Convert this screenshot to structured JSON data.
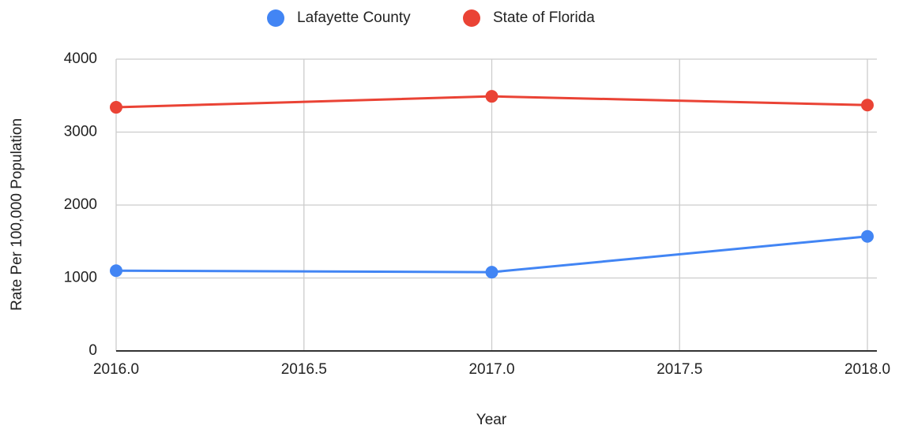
{
  "chart_data": {
    "type": "line",
    "x": [
      2016,
      2017,
      2018
    ],
    "series": [
      {
        "name": "Lafayette County",
        "color": "#4285f4",
        "values": [
          1100,
          1080,
          1570
        ]
      },
      {
        "name": "State of Florida",
        "color": "#ea4335",
        "values": [
          3340,
          3490,
          3370
        ]
      }
    ],
    "xlabel": "Year",
    "ylabel": "Rate Per 100,000 Population",
    "xlim": [
      2016,
      2018
    ],
    "xticks": [
      {
        "value": 2016,
        "label": "2016.0"
      },
      2016.5,
      {
        "value": 2017,
        "label": "2017.0"
      },
      2017.5,
      {
        "value": 2018,
        "label": "2018.0"
      }
    ],
    "ylim": [
      0,
      4000
    ],
    "yticks": [
      0,
      1000,
      2000,
      3000,
      4000
    ],
    "grid": true,
    "legend": "top"
  }
}
